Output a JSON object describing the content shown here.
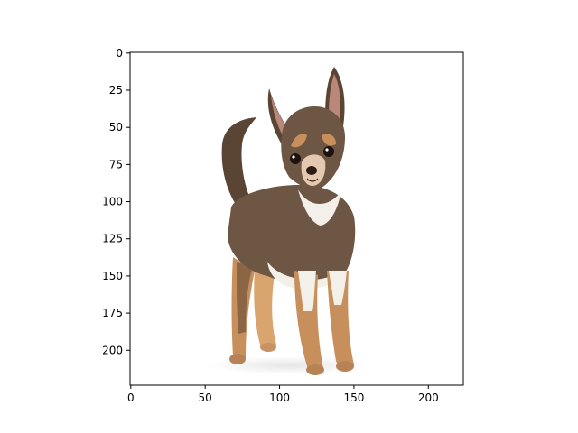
{
  "figure": {
    "image_subject": "chihuahua-dog",
    "x_axis": {
      "min": -0.5,
      "max": 223.5,
      "ticks": [
        0,
        50,
        100,
        150,
        200
      ]
    },
    "y_axis": {
      "min": -0.5,
      "max": 223.5,
      "inverted": true,
      "ticks": [
        0,
        25,
        50,
        75,
        100,
        125,
        150,
        175,
        200
      ]
    },
    "colors": {
      "coat_dark": "#5a4535",
      "coat_mid": "#6e5644",
      "tan": "#c78f5c",
      "white_fur": "#f3efe9",
      "ear_inner": "#b9887a",
      "nose": "#2a1d16"
    }
  }
}
